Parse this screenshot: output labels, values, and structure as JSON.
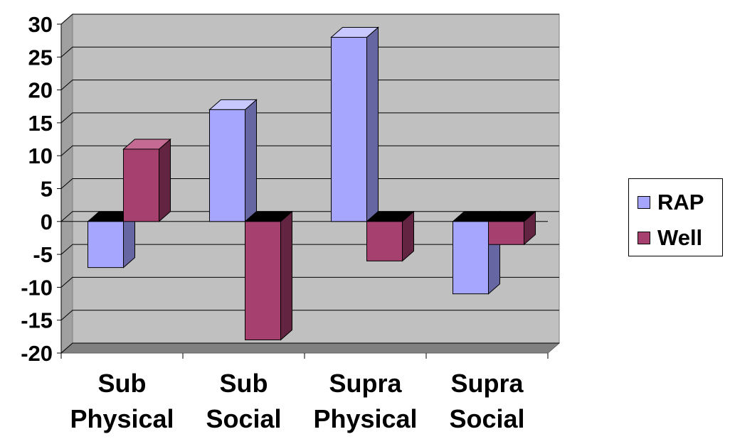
{
  "chart_data": {
    "type": "bar",
    "categories": [
      [
        "Sub",
        "Physical"
      ],
      [
        "Sub",
        "Social"
      ],
      [
        "Supra",
        "Physical"
      ],
      [
        "Supra",
        "Social"
      ]
    ],
    "series": [
      {
        "name": "RAP",
        "values": [
          -7,
          17,
          28,
          -11
        ],
        "color": "#a6a6ff",
        "side_color": "#6666a3",
        "top_color": "#c8c8ff"
      },
      {
        "name": "Well",
        "values": [
          11,
          -18,
          -6,
          -3.5
        ],
        "color": "#a6406e",
        "side_color": "#622440",
        "top_color": "#c56a92"
      }
    ],
    "title": "",
    "xlabel": "",
    "ylabel": "",
    "ylim": [
      -20,
      30
    ],
    "yticks": [
      30,
      25,
      20,
      15,
      10,
      5,
      0,
      -5,
      -10,
      -15,
      -20
    ],
    "grid": true,
    "legend_position": "right",
    "plot_background": "#c0c0c0"
  }
}
